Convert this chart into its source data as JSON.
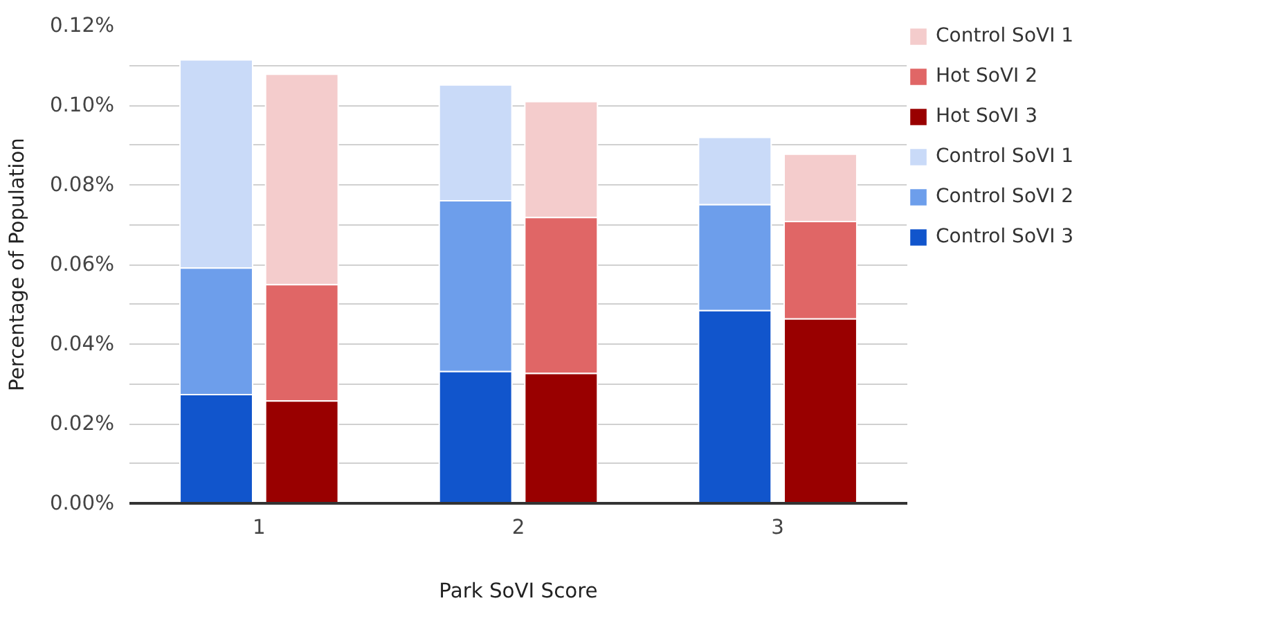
{
  "chart_data": {
    "type": "bar",
    "xlabel": "Park SoVI Score",
    "ylabel": "Percentage of Population",
    "xlim": [
      0.5,
      3.5
    ],
    "xticks": [
      1,
      2,
      3
    ],
    "ylim": [
      0,
      0.12
    ],
    "yticks": [
      {
        "value": 0,
        "label": "0.00%"
      },
      {
        "value": 0.01,
        "label": null
      },
      {
        "value": 0.02,
        "label": "0.02%"
      },
      {
        "value": 0.03,
        "label": null
      },
      {
        "value": 0.04,
        "label": "0.04%"
      },
      {
        "value": 0.05,
        "label": null
      },
      {
        "value": 0.06,
        "label": "0.06%"
      },
      {
        "value": 0.07,
        "label": null
      },
      {
        "value": 0.08,
        "label": "0.08%"
      },
      {
        "value": 0.09,
        "label": null
      },
      {
        "value": 0.1,
        "label": "0.10%"
      },
      {
        "value": 0.11,
        "label": null
      },
      {
        "value": 0.12,
        "label": "0.12%"
      }
    ],
    "grid": "y",
    "legend": "right",
    "series": [
      {
        "name": "Control SoVI 1",
        "color": "#f4cccc",
        "x": [
          1.165,
          2.165,
          3.165
        ],
        "base": [
          0.0549,
          0.0718,
          0.0708
        ],
        "values": [
          0.0529,
          0.0291,
          0.0169
        ]
      },
      {
        "name": "Hot SoVI 2",
        "color": "#e06666",
        "x": [
          1.165,
          2.165,
          3.165
        ],
        "base": [
          0.0257,
          0.0326,
          0.0463
        ],
        "values": [
          0.0292,
          0.0392,
          0.0245
        ]
      },
      {
        "name": "Hot SoVI 3",
        "color": "#990000",
        "x": [
          1.165,
          2.165,
          3.165
        ],
        "base": [
          0,
          0,
          0
        ],
        "values": [
          0.0257,
          0.0326,
          0.0463
        ]
      },
      {
        "name": "Control SoVI 1",
        "color": "#c9daf8",
        "x": [
          0.835,
          1.835,
          2.835
        ],
        "base": [
          0.0591,
          0.076,
          0.075
        ],
        "values": [
          0.0523,
          0.0291,
          0.0169
        ]
      },
      {
        "name": "Control SoVI 2",
        "color": "#6d9eeb",
        "x": [
          0.835,
          1.835,
          2.835
        ],
        "base": [
          0.0273,
          0.0331,
          0.0484
        ],
        "values": [
          0.0318,
          0.0429,
          0.0266
        ]
      },
      {
        "name": "Control SoVI 3",
        "color": "#1155cc",
        "x": [
          0.835,
          1.835,
          2.835
        ],
        "base": [
          0,
          0,
          0
        ],
        "values": [
          0.0273,
          0.0331,
          0.0484
        ]
      }
    ]
  }
}
